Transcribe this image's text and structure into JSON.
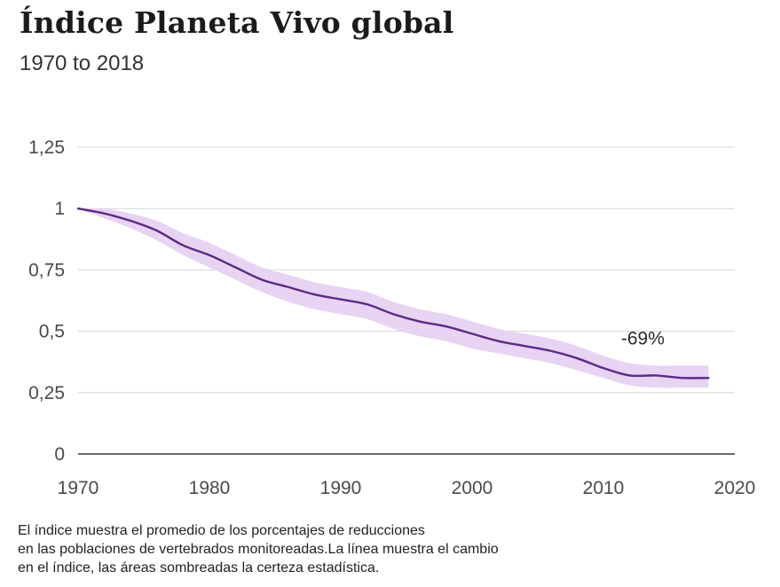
{
  "chart_data": {
    "type": "line",
    "title": "Índice Planeta Vivo global",
    "subtitle": "1970 to 2018",
    "xlabel": "",
    "ylabel": "",
    "xlim": [
      1970,
      2020
    ],
    "ylim": [
      0,
      1.25
    ],
    "x_ticks": [
      1970,
      1980,
      1990,
      2000,
      2010,
      2020
    ],
    "x_tick_labels": [
      "1970",
      "1980",
      "1990",
      "2000",
      "2010",
      "2020"
    ],
    "y_ticks": [
      0,
      0.25,
      0.5,
      0.75,
      1,
      1.25
    ],
    "y_tick_labels": [
      "0",
      "0,25",
      "0,5",
      "0,75",
      "1",
      "1,25"
    ],
    "grid": "horizontal",
    "series": [
      {
        "x": [
          1970,
          1972,
          1974,
          1976,
          1978,
          1980,
          1982,
          1984,
          1986,
          1988,
          1990,
          1992,
          1994,
          1996,
          1998,
          2000,
          2002,
          2004,
          2006,
          2008,
          2010,
          2012,
          2014,
          2016,
          2018
        ],
        "values": [
          1.0,
          0.98,
          0.95,
          0.91,
          0.85,
          0.81,
          0.76,
          0.71,
          0.68,
          0.65,
          0.63,
          0.61,
          0.57,
          0.54,
          0.52,
          0.49,
          0.46,
          0.44,
          0.42,
          0.39,
          0.35,
          0.32,
          0.32,
          0.31,
          0.31
        ],
        "lower": [
          1.0,
          0.96,
          0.92,
          0.87,
          0.81,
          0.76,
          0.71,
          0.66,
          0.62,
          0.59,
          0.57,
          0.55,
          0.51,
          0.48,
          0.46,
          0.43,
          0.41,
          0.39,
          0.37,
          0.34,
          0.31,
          0.28,
          0.27,
          0.27,
          0.27
        ],
        "upper": [
          1.0,
          1.0,
          0.98,
          0.95,
          0.9,
          0.86,
          0.81,
          0.76,
          0.73,
          0.7,
          0.68,
          0.66,
          0.62,
          0.59,
          0.57,
          0.54,
          0.51,
          0.49,
          0.47,
          0.44,
          0.4,
          0.37,
          0.36,
          0.36,
          0.36
        ]
      }
    ],
    "annotations": [
      {
        "text": "-69%",
        "x": 2013,
        "y": 0.49
      }
    ],
    "note_lines": [
      "El índice muestra el promedio de los porcentajes de reducciones",
      "en las poblaciones de vertebrados monitoreadas.La línea muestra el cambio",
      "en el índice, las áreas sombreadas la certeza estadística."
    ],
    "colors": {
      "line": "#5b2a86",
      "band": "#e7d3f2",
      "grid": "#d6d6d6",
      "axis": "#3a3a3a"
    }
  }
}
